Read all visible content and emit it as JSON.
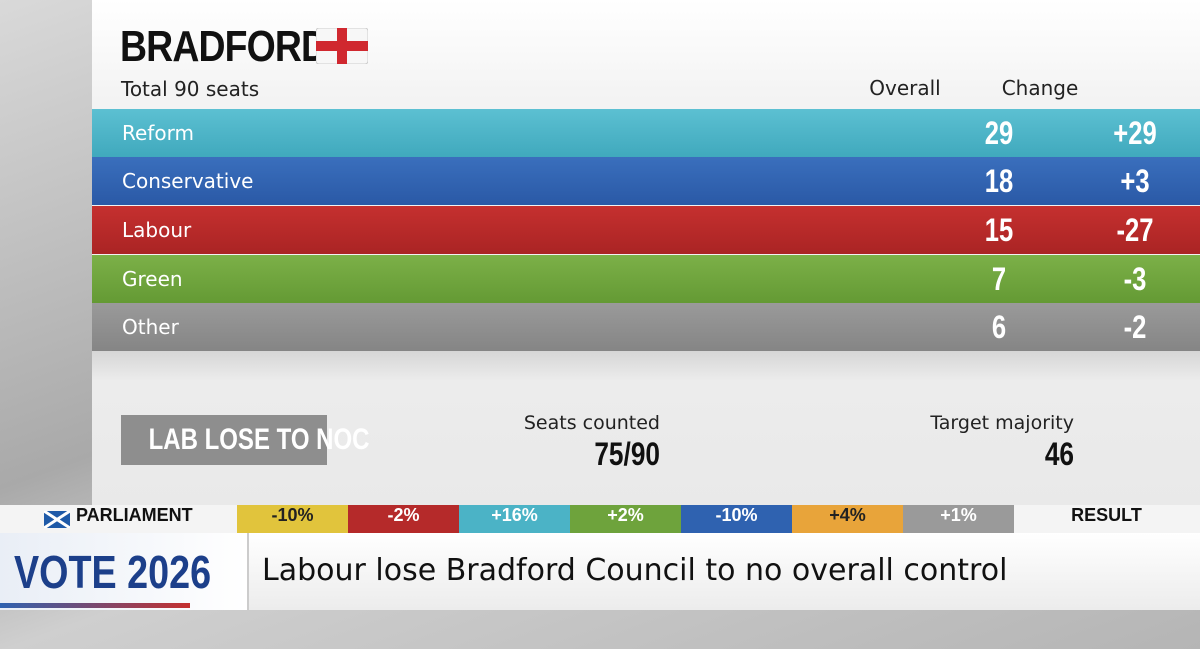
{
  "header": {
    "title": "BRADFORD",
    "subtitle": "Total 90 seats",
    "columns": [
      "Overall",
      "Change"
    ]
  },
  "table": {
    "rows": [
      [
        "Reform",
        "29",
        "+29"
      ],
      [
        "Conservative",
        "18",
        "+3"
      ],
      [
        "Labour",
        "15",
        "-27"
      ],
      [
        "Green",
        "7",
        "-3"
      ],
      [
        "Other",
        "6",
        "-2"
      ]
    ]
  },
  "status": {
    "result": "LAB LOSE TO NOC",
    "seats_label": "Seats counted",
    "seats_value": "75/90",
    "target_label": "Target majority",
    "target_value": "46"
  },
  "ticker": {
    "label": "PARLIAMENT",
    "items": [
      "-10%",
      "-2%",
      "+16%",
      "+2%",
      "-10%",
      "+4%",
      "+1%"
    ],
    "end": "RESULT"
  },
  "banner": {
    "brand": "VOTE 2026",
    "headline": "Labour lose Bradford Council to no overall control"
  }
}
